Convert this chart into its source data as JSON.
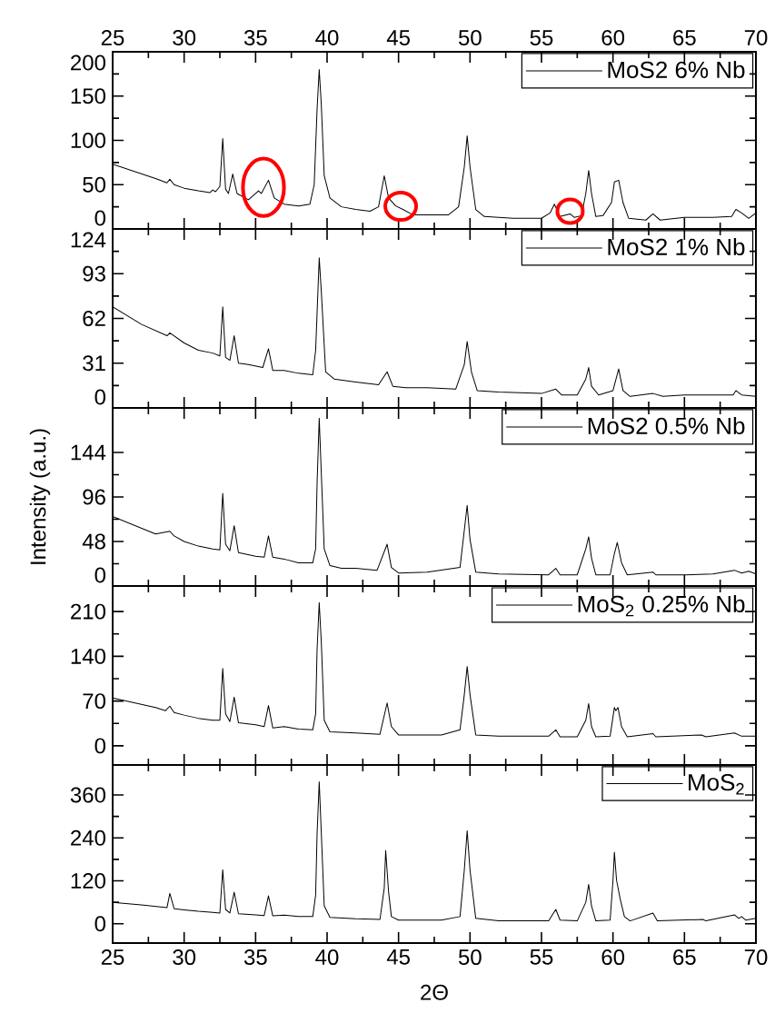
{
  "chart_data": [
    {
      "type": "line",
      "xlim": [
        25,
        70
      ],
      "xticks": [
        25,
        30,
        35,
        40,
        45,
        50,
        55,
        60,
        65,
        70
      ],
      "x2lim": [
        25,
        70
      ],
      "x2ticks": [
        25,
        30,
        35,
        40,
        45,
        50,
        55,
        60,
        65,
        70
      ],
      "ylim": [
        0,
        200
      ],
      "yticks": [
        0,
        50,
        100,
        150,
        200
      ],
      "tick_labels": "y",
      "legend": "top right",
      "series": [
        {
          "name": "MoS2 6% Nb",
          "color": "#000000",
          "x": [
            25,
            28,
            28.8,
            29,
            29.3,
            30,
            31,
            31.8,
            32,
            32.2,
            32.5,
            32.7,
            32.9,
            33.1,
            33.4,
            33.7,
            34.5,
            35.2,
            35.4,
            35.9,
            36.3,
            37,
            38,
            38.8,
            39.1,
            39.3,
            39.45,
            39.6,
            39.8,
            40.2,
            41,
            42,
            43,
            43.6,
            44,
            44.3,
            44.8,
            45.3,
            46,
            48.5,
            49.2,
            49.6,
            49.8,
            50,
            50.4,
            51,
            53,
            55,
            55.6,
            55.9,
            56.3,
            57,
            57.3,
            57.8,
            58.1,
            58.3,
            58.5,
            58.8,
            59.3,
            59.9,
            60.1,
            60.4,
            60.7,
            61.1,
            62.3,
            62.8,
            63.3,
            65,
            67,
            68.3,
            68.6,
            69,
            69.5,
            70
          ],
          "values": [
            73,
            57,
            52,
            56,
            50,
            46,
            43,
            41,
            44,
            42,
            48,
            102,
            45,
            40,
            62,
            40,
            33,
            43,
            40,
            55,
            35,
            28,
            26,
            28,
            50,
            135,
            180,
            139,
            60,
            35,
            25,
            22,
            20,
            25,
            60,
            35,
            26,
            22,
            16,
            16,
            25,
            70,
            105,
            70,
            22,
            14,
            12,
            12,
            18,
            28,
            14,
            17,
            13,
            15,
            40,
            66,
            40,
            14,
            15,
            30,
            53,
            55,
            30,
            12,
            10,
            17,
            10,
            13,
            13,
            14,
            22,
            18,
            12,
            18
          ]
        }
      ]
    },
    {
      "type": "line",
      "xlim": [
        25,
        70
      ],
      "xticks": [
        25,
        30,
        35,
        40,
        45,
        50,
        55,
        60,
        65,
        70
      ],
      "ylim": [
        0,
        124
      ],
      "yticks": [
        0,
        31,
        62,
        93,
        124
      ],
      "tick_labels": "y",
      "legend": "top right",
      "series": [
        {
          "name": "MoS2 1% Nb",
          "color": "#000000",
          "x": [
            25,
            27,
            28.8,
            29,
            30,
            31,
            32,
            32.5,
            32.7,
            32.9,
            33.2,
            33.5,
            33.8,
            34.5,
            35.5,
            35.9,
            36.2,
            37,
            38,
            39,
            39.2,
            39.45,
            39.6,
            39.9,
            40.5,
            42,
            43.6,
            44.2,
            44.6,
            45.5,
            47,
            49,
            49.6,
            49.8,
            50.1,
            50.5,
            52,
            55,
            56,
            56.4,
            57.5,
            58.1,
            58.3,
            58.5,
            59,
            60,
            60.4,
            60.7,
            61.2,
            62.8,
            63.5,
            65,
            68.4,
            68.6,
            69,
            70
          ],
          "values": [
            70,
            58,
            50,
            52,
            45,
            40,
            38,
            36,
            70,
            35,
            33,
            50,
            31,
            30,
            28,
            41,
            26,
            26,
            24,
            23,
            40,
            104,
            80,
            25,
            20,
            18,
            16,
            25,
            15,
            14,
            14,
            13,
            30,
            46,
            25,
            12,
            11,
            10,
            13,
            9,
            9,
            20,
            28,
            15,
            9,
            12,
            27,
            12,
            8,
            10,
            8,
            9,
            9,
            12,
            9,
            8
          ]
        }
      ]
    },
    {
      "type": "line",
      "ylabel": "Intensity (a.u.)",
      "xlim": [
        25,
        70
      ],
      "xticks": [
        25,
        30,
        35,
        40,
        45,
        50,
        55,
        60,
        65,
        70
      ],
      "ylim": [
        0,
        192
      ],
      "yticks": [
        0,
        48,
        96,
        144
      ],
      "tick_labels": "y",
      "legend": "top right",
      "series": [
        {
          "name": "MoS2 0.5% Nb",
          "color": "#000000",
          "x": [
            25,
            28,
            29,
            29.3,
            30,
            31,
            32,
            32.5,
            32.7,
            32.9,
            33.2,
            33.5,
            33.8,
            35,
            35.6,
            35.9,
            36.2,
            37,
            38,
            39,
            39.2,
            39.3,
            39.45,
            39.6,
            39.8,
            40.2,
            41,
            42,
            43.5,
            44.2,
            44.5,
            45,
            47,
            49.3,
            49.6,
            49.8,
            50,
            50.4,
            52,
            55.5,
            56,
            56.3,
            57.5,
            58.1,
            58.3,
            58.5,
            58.8,
            59.8,
            60.1,
            60.3,
            60.6,
            61,
            62.8,
            63,
            65,
            67,
            68.5,
            69,
            69.5,
            70
          ],
          "values": [
            75,
            56,
            59,
            54,
            48,
            43,
            40,
            39,
            100,
            45,
            38,
            65,
            36,
            32,
            31,
            54,
            31,
            29,
            25,
            25,
            40,
            110,
            181,
            120,
            40,
            22,
            19,
            19,
            17,
            45,
            20,
            14,
            15,
            20,
            60,
            87,
            50,
            15,
            13,
            12,
            19,
            12,
            12,
            40,
            53,
            30,
            12,
            12,
            35,
            47,
            25,
            12,
            15,
            12,
            12,
            13,
            17,
            14,
            16,
            13
          ]
        }
      ]
    },
    {
      "type": "line",
      "xlim": [
        25,
        70
      ],
      "xticks": [
        25,
        30,
        35,
        40,
        45,
        50,
        55,
        60,
        65,
        70
      ],
      "ylim": [
        -30,
        250
      ],
      "yticks": [
        0,
        70,
        140,
        210
      ],
      "tick_labels": "y",
      "legend": "top right",
      "series": [
        {
          "name": "MoS$_{2}$ 0.25% Nb",
          "color": "#000000",
          "x": [
            25,
            28,
            28.7,
            29,
            29.3,
            30,
            31,
            32,
            32.5,
            32.7,
            32.9,
            33.2,
            33.5,
            33.8,
            35,
            35.6,
            35.9,
            36.2,
            37,
            38,
            39,
            39.2,
            39.3,
            39.45,
            39.6,
            39.8,
            40.2,
            42,
            43.7,
            44.2,
            44.5,
            45,
            48,
            49.3,
            49.6,
            49.8,
            50,
            50.4,
            52,
            55.5,
            56,
            56.3,
            57.5,
            58.1,
            58.3,
            58.5,
            58.8,
            59.8,
            60.1,
            60.2,
            60.35,
            60.6,
            61,
            62.8,
            63,
            66.2,
            66.5,
            68.5,
            69,
            70
          ],
          "values": [
            75,
            60,
            55,
            62,
            52,
            48,
            43,
            40,
            40,
            121,
            50,
            38,
            76,
            36,
            33,
            30,
            63,
            28,
            30,
            26,
            25,
            50,
            150,
            224,
            160,
            40,
            22,
            20,
            18,
            67,
            30,
            17,
            17,
            25,
            80,
            124,
            80,
            17,
            15,
            15,
            25,
            14,
            14,
            40,
            66,
            30,
            14,
            15,
            60,
            55,
            60,
            30,
            14,
            19,
            14,
            17,
            14,
            20,
            15,
            15
          ]
        }
      ]
    },
    {
      "type": "line",
      "xlabel": "2Θ",
      "xlim": [
        25,
        70
      ],
      "xticks": [
        25,
        30,
        35,
        40,
        45,
        50,
        55,
        60,
        65,
        70
      ],
      "ylim": [
        -54,
        444
      ],
      "yticks": [
        0,
        120,
        240,
        360
      ],
      "legend": "top right",
      "series": [
        {
          "name": "MoS$_{2}$",
          "color": "#000000",
          "x": [
            25,
            27,
            28.8,
            29,
            29.3,
            30,
            31,
            32,
            32.5,
            32.7,
            32.9,
            33.2,
            33.5,
            33.8,
            35,
            35.6,
            35.9,
            36.2,
            37,
            38,
            39,
            39.2,
            39.3,
            39.45,
            39.6,
            39.8,
            40.2,
            42,
            43.7,
            44,
            44.1,
            44.3,
            44.5,
            45,
            48,
            49.3,
            49.6,
            49.8,
            50,
            50.4,
            52,
            55.5,
            56,
            56.3,
            57.5,
            58.1,
            58.3,
            58.5,
            58.8,
            59.8,
            60,
            60.1,
            60.25,
            60.5,
            60.8,
            61.2,
            62.8,
            63.1,
            66.3,
            66.5,
            68.5,
            68.8,
            69,
            69.3,
            70
          ],
          "values": [
            60,
            53,
            45,
            85,
            42,
            39,
            35,
            32,
            30,
            151,
            40,
            30,
            88,
            28,
            25,
            23,
            78,
            22,
            24,
            20,
            20,
            80,
            250,
            397,
            250,
            50,
            18,
            14,
            12,
            100,
            205,
            90,
            20,
            10,
            10,
            20,
            150,
            260,
            150,
            15,
            8,
            8,
            40,
            10,
            8,
            60,
            110,
            50,
            8,
            10,
            120,
            200,
            122,
            70,
            20,
            8,
            30,
            8,
            12,
            8,
            25,
            15,
            20,
            10,
            15
          ]
        }
      ]
    }
  ]
}
